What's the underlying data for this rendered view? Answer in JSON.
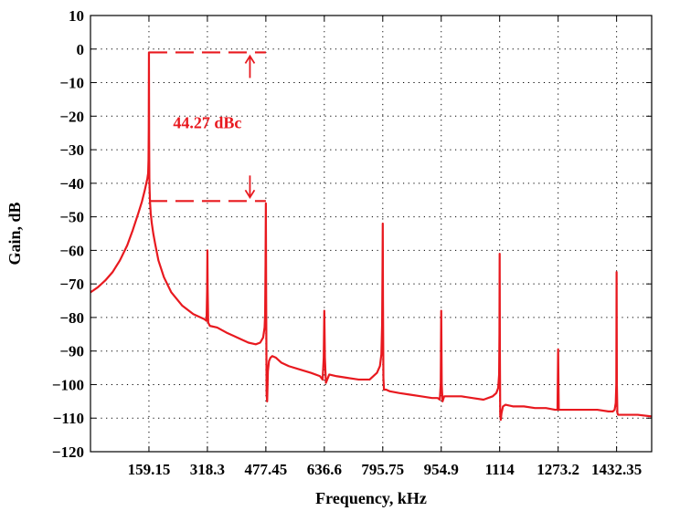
{
  "chart_data": {
    "type": "line",
    "title": "",
    "xlabel": "Frequency, kHz",
    "ylabel": "Gain, dB",
    "xlim": [
      0,
      1527.84
    ],
    "ylim": [
      -120,
      10
    ],
    "x_ticks": [
      159.15,
      318.3,
      477.45,
      636.6,
      795.75,
      954.9,
      1114,
      1273.2,
      1432.35
    ],
    "x_tick_labels": [
      "159.15",
      "318.3",
      "477.45",
      "636.6",
      "795.75",
      "954.9",
      "1114",
      "1273.2",
      "1432.35"
    ],
    "y_ticks": [
      10,
      0,
      -10,
      -20,
      -30,
      -40,
      -50,
      -60,
      -70,
      -80,
      -90,
      -100,
      -110,
      -120
    ],
    "y_tick_labels": [
      "10",
      "0",
      "−10",
      "−20",
      "−30",
      "−40",
      "−50",
      "−60",
      "−70",
      "−80",
      "−90",
      "−100",
      "−110",
      "−120"
    ],
    "grid": true,
    "series_color": "#e8191f",
    "series": [
      {
        "x": [
          0,
          20,
          40,
          60,
          80,
          100,
          115,
          130,
          140,
          148,
          152,
          155,
          157,
          158,
          158.6,
          159.15,
          159.7,
          160.3,
          161,
          162,
          164,
          167,
          171,
          176,
          185,
          200,
          220,
          250,
          280,
          310,
          316,
          317.5,
          318.3,
          319.1,
          320.5,
          325,
          345,
          370,
          400,
          430,
          450,
          462,
          470,
          474,
          475.5,
          476.6,
          477.45,
          478.3,
          479.5,
          481,
          483,
          486,
          490,
          495,
          505,
          520,
          540,
          570,
          600,
          625,
          632,
          635,
          636.6,
          638.2,
          641,
          650,
          670,
          700,
          730,
          760,
          780,
          788,
          792,
          794,
          795.1,
          795.75,
          796.4,
          797.5,
          799,
          801,
          805,
          815,
          840,
          870,
          900,
          930,
          945,
          951,
          953.5,
          954.9,
          956.3,
          958.5,
          963,
          980,
          1010,
          1040,
          1070,
          1095,
          1105,
          1110,
          1112.5,
          1113.4,
          1114,
          1114.6,
          1115.5,
          1117,
          1119,
          1123,
          1130,
          1150,
          1180,
          1210,
          1240,
          1265,
          1271.5,
          1273.2,
          1274.9,
          1280,
          1300,
          1340,
          1380,
          1410,
          1422,
          1427,
          1430,
          1431.6,
          1432.35,
          1433.1,
          1434.5,
          1436.5,
          1440,
          1460,
          1490,
          1527.84
        ],
        "y": [
          -72.5,
          -71,
          -69,
          -66.5,
          -63,
          -58.5,
          -54,
          -49,
          -45.5,
          -42,
          -40,
          -38.5,
          -37,
          -33,
          -24,
          -1,
          -27,
          -38.5,
          -42,
          -45.5,
          -49,
          -52,
          -55,
          -58,
          -63,
          -68,
          -72.5,
          -76.5,
          -79,
          -80.5,
          -81,
          -72,
          -60,
          -72,
          -81.5,
          -82.5,
          -83,
          -84.5,
          -86,
          -87.5,
          -88,
          -87.5,
          -86,
          -83,
          -79,
          -64,
          -46,
          -74,
          -103,
          -105,
          -96,
          -93,
          -92,
          -91.5,
          -92,
          -93.5,
          -94.5,
          -95.5,
          -96.5,
          -97.5,
          -98.5,
          -92,
          -78,
          -92,
          -99.5,
          -97,
          -97.5,
          -98,
          -98.5,
          -98.5,
          -96.5,
          -94.5,
          -91,
          -82,
          -65,
          -52,
          -75,
          -98,
          -101.5,
          -101.5,
          -101.5,
          -102,
          -102.5,
          -103,
          -103.5,
          -104,
          -104,
          -104.5,
          -100,
          -78,
          -100,
          -105,
          -103.5,
          -103.5,
          -103.5,
          -104,
          -104.5,
          -103.5,
          -102.5,
          -101,
          -97,
          -85,
          -61,
          -90,
          -109,
          -110.5,
          -108.5,
          -106.5,
          -106,
          -106.5,
          -106.5,
          -107,
          -107,
          -107.5,
          -107.5,
          -89.5,
          -107.5,
          -107.5,
          -107.5,
          -107.5,
          -107.5,
          -108,
          -108,
          -107.5,
          -105.5,
          -100,
          -66.5,
          -100,
          -108.5,
          -109,
          -109,
          -109,
          -109,
          -109.5
        ]
      }
    ],
    "annotations": [
      {
        "text": "44.27 dBc",
        "x": 318.3,
        "y": -22,
        "color": "#e8191f",
        "upper_level": -1,
        "lower_level": -45.3,
        "upper_from_x": 159.15,
        "upper_to_x": 477.45,
        "lower_from_x": 159.15,
        "lower_to_x": 477.45,
        "arrow_x": 434.1
      }
    ]
  }
}
